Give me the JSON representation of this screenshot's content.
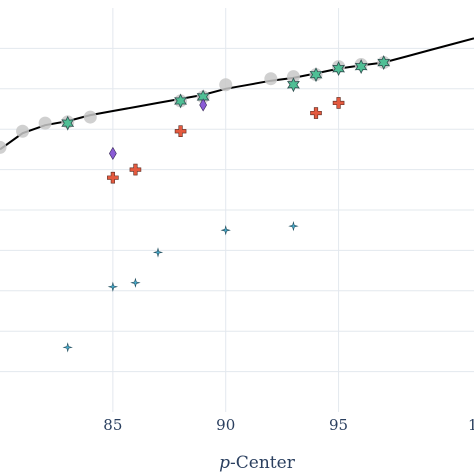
{
  "chart_data": {
    "type": "scatter",
    "xlabel_italic": "p",
    "xlabel_rest": "-Center",
    "xlim": [
      80,
      101
    ],
    "ylim": [
      0,
      10
    ],
    "x_ticks": [
      85,
      90,
      95
    ],
    "x_tick_labels": [
      "85",
      "90",
      "95"
    ],
    "x_edge_tick_label": "1",
    "grid": true,
    "colors": {
      "line": "#000000",
      "gray": "#c8c8c8",
      "star": "#4fbf95",
      "cross": "#e45a3f",
      "diamond": "#8b5cd6",
      "small_star": "#4aaed0",
      "grid": "#e3e8ee"
    },
    "series": [
      {
        "marker": "line",
        "x": [
          80,
          81,
          82,
          83,
          84,
          85,
          86,
          87,
          88,
          89,
          90,
          91,
          92,
          93,
          94,
          95,
          96,
          97,
          98,
          99,
          100,
          101
        ],
        "y": [
          6.5,
          6.9,
          7.1,
          7.2,
          7.35,
          7.45,
          7.55,
          7.65,
          7.75,
          7.85,
          8.0,
          8.1,
          8.2,
          8.27,
          8.38,
          8.5,
          8.58,
          8.65,
          8.8,
          8.95,
          9.1,
          9.25
        ]
      },
      {
        "marker": "gray-circle",
        "x": [
          80,
          81,
          82,
          83,
          84,
          88,
          89,
          90,
          92,
          93,
          94,
          95,
          96,
          97
        ],
        "y": [
          6.55,
          6.95,
          7.15,
          7.18,
          7.3,
          7.7,
          7.8,
          8.1,
          8.25,
          8.3,
          8.35,
          8.55,
          8.6,
          8.65
        ]
      },
      {
        "marker": "star",
        "x": [
          83,
          88,
          89,
          93,
          94,
          95,
          96,
          97
        ],
        "y": [
          7.15,
          7.7,
          7.8,
          8.1,
          8.35,
          8.5,
          8.55,
          8.65
        ]
      },
      {
        "marker": "cross",
        "x": [
          85,
          86,
          88,
          94,
          95
        ],
        "y": [
          5.8,
          6.0,
          6.95,
          7.4,
          7.65
        ]
      },
      {
        "marker": "diamond",
        "x": [
          85,
          89
        ],
        "y": [
          6.4,
          7.6
        ]
      },
      {
        "marker": "small-star",
        "x": [
          83,
          85,
          86,
          87,
          90,
          93
        ],
        "y": [
          1.6,
          3.1,
          3.2,
          3.95,
          4.5,
          4.6
        ]
      }
    ]
  }
}
